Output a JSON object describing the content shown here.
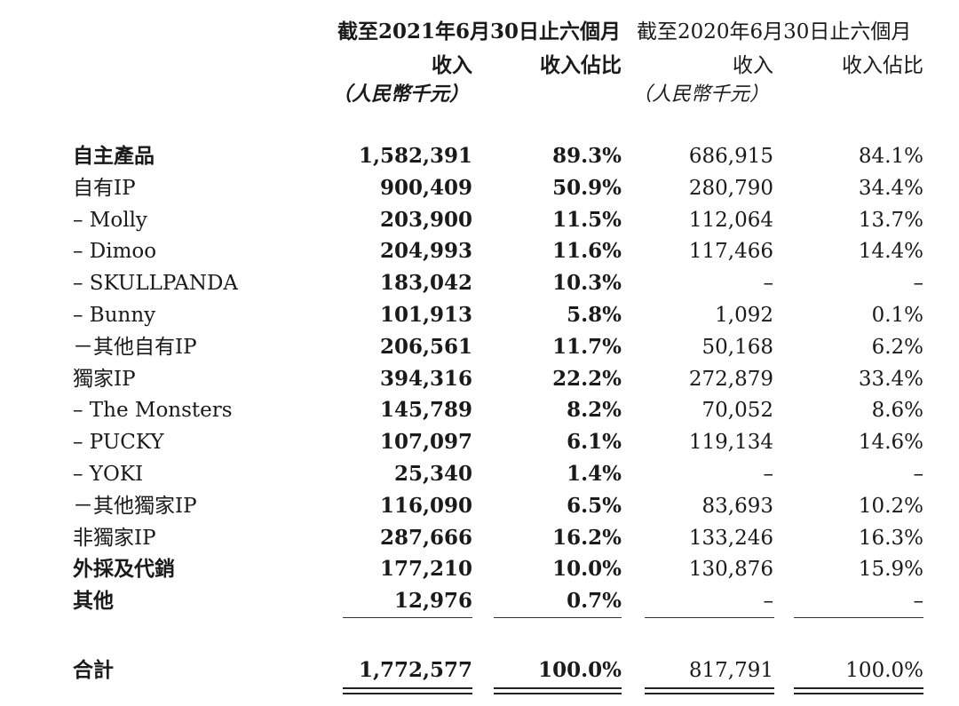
{
  "header": {
    "period_2021": "截至2021年6月30日止六個月",
    "period_2020": "截至2020年6月30日止六個月",
    "revenue_label": "收入",
    "share_label": "收入佔比",
    "unit": "（人民幣千元）"
  },
  "rows": [
    {
      "label": "自主產品",
      "v1": "1,582,391",
      "p1": "89.3%",
      "v2": "686,915",
      "p2": "84.1%",
      "bold": true
    },
    {
      "label": "自有IP",
      "v1": "900,409",
      "p1": "50.9%",
      "v2": "280,790",
      "p2": "34.4%",
      "bold": false
    },
    {
      "label": "– Molly",
      "v1": "203,900",
      "p1": "11.5%",
      "v2": "112,064",
      "p2": "13.7%",
      "bold": false
    },
    {
      "label": "– Dimoo",
      "v1": "204,993",
      "p1": "11.6%",
      "v2": "117,466",
      "p2": "14.4%",
      "bold": false
    },
    {
      "label": "– SKULLPANDA",
      "v1": "183,042",
      "p1": "10.3%",
      "v2": "–",
      "p2": "–",
      "bold": false
    },
    {
      "label": "– Bunny",
      "v1": "101,913",
      "p1": "5.8%",
      "v2": "1,092",
      "p2": "0.1%",
      "bold": false
    },
    {
      "label": "－其他自有IP",
      "v1": "206,561",
      "p1": "11.7%",
      "v2": "50,168",
      "p2": "6.2%",
      "bold": false
    },
    {
      "label": "獨家IP",
      "v1": "394,316",
      "p1": "22.2%",
      "v2": "272,879",
      "p2": "33.4%",
      "bold": false
    },
    {
      "label": "– The Monsters",
      "v1": "145,789",
      "p1": "8.2%",
      "v2": "70,052",
      "p2": "8.6%",
      "bold": false
    },
    {
      "label": "– PUCKY",
      "v1": "107,097",
      "p1": "6.1%",
      "v2": "119,134",
      "p2": "14.6%",
      "bold": false
    },
    {
      "label": "– YOKI",
      "v1": "25,340",
      "p1": "1.4%",
      "v2": "–",
      "p2": "–",
      "bold": false
    },
    {
      "label": "－其他獨家IP",
      "v1": "116,090",
      "p1": "6.5%",
      "v2": "83,693",
      "p2": "10.2%",
      "bold": false
    },
    {
      "label": "非獨家IP",
      "v1": "287,666",
      "p1": "16.2%",
      "v2": "133,246",
      "p2": "16.3%",
      "bold": false
    },
    {
      "label": "外採及代銷",
      "v1": "177,210",
      "p1": "10.0%",
      "v2": "130,876",
      "p2": "15.9%",
      "bold": true
    },
    {
      "label": "其他",
      "v1": "12,976",
      "p1": "0.7%",
      "v2": "–",
      "p2": "–",
      "bold": true
    }
  ],
  "total": {
    "label": "合計",
    "v1": "1,772,577",
    "p1": "100.0%",
    "v2": "817,791",
    "p2": "100.0%"
  }
}
